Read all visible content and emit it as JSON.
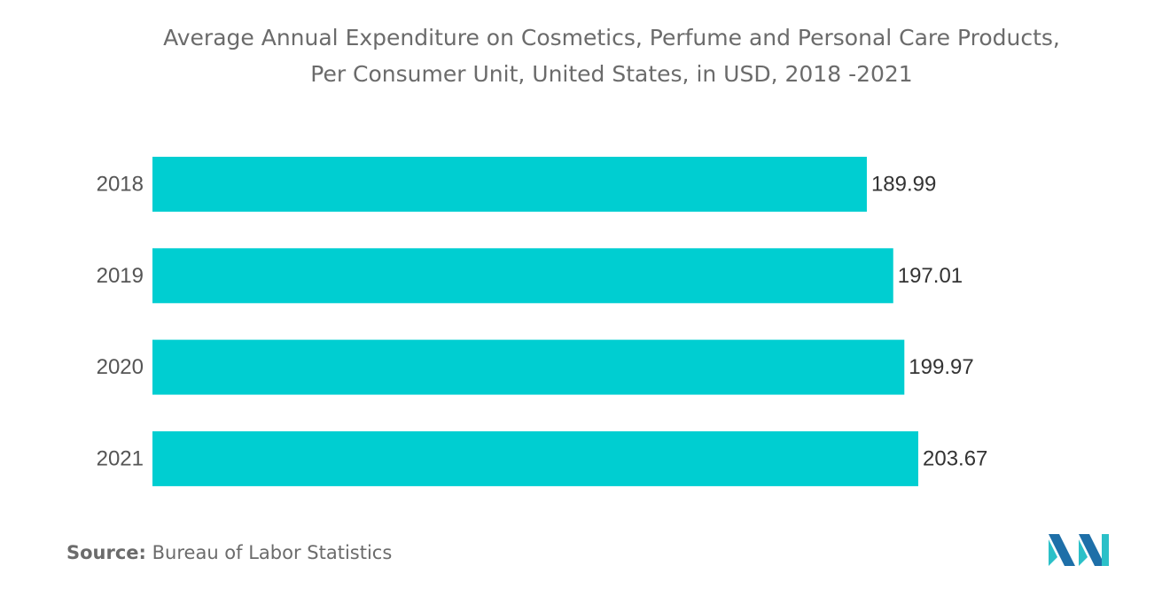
{
  "chart_data": {
    "type": "bar",
    "orientation": "horizontal",
    "title_lines": [
      "Average Annual Expenditure on Cosmetics, Perfume and Personal Care Products,",
      "Per Consumer Unit, United States, in USD, 2018 -2021"
    ],
    "categories": [
      "2018",
      "2019",
      "2020",
      "2021"
    ],
    "values": [
      189.99,
      197.01,
      199.97,
      203.67
    ],
    "value_labels": [
      "189.99",
      "197.01",
      "199.97",
      "203.67"
    ],
    "xlim": [
      0,
      203.67
    ],
    "grid": false,
    "legend": "none",
    "bar_color": "#00CED1"
  },
  "source": {
    "label": "Source:",
    "text": "Bureau of Labor Statistics"
  },
  "logo": {
    "icon": "mordor-intelligence-logo-icon",
    "colors": [
      "#1E6FA8",
      "#2BC0C8"
    ]
  }
}
